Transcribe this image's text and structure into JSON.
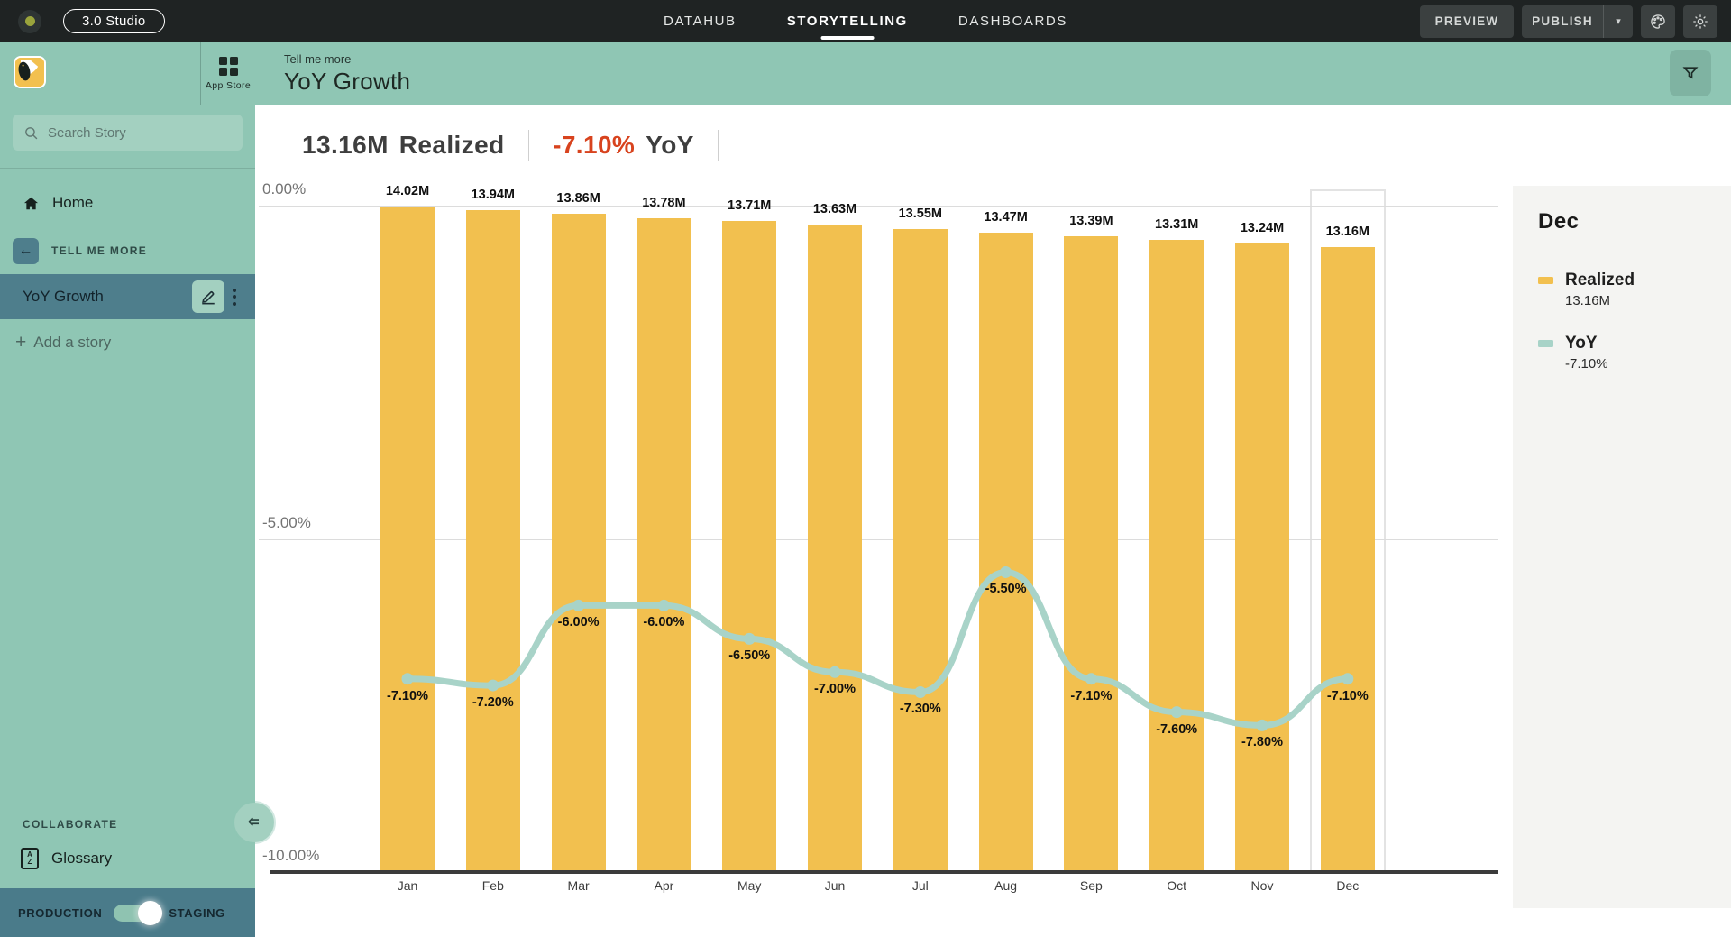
{
  "topbar": {
    "app_pill": "3.0 Studio",
    "nav": [
      {
        "label": "DATAHUB",
        "active": false
      },
      {
        "label": "STORYTELLING",
        "active": true
      },
      {
        "label": "DASHBOARDS",
        "active": false
      }
    ],
    "preview_label": "PREVIEW",
    "publish_label": "PUBLISH"
  },
  "header": {
    "eyebrow": "Tell me more",
    "title": "YoY Growth",
    "app_store_label": "App Store"
  },
  "sidebar": {
    "search_placeholder": "Search Story",
    "home_label": "Home",
    "section_label": "TELL ME MORE",
    "story_label": "YoY Growth",
    "add_story_label": "Add a story",
    "collaborate_label": "COLLABORATE",
    "glossary_label": "Glossary",
    "production_label": "PRODUCTION",
    "staging_label": "STAGING"
  },
  "headline": {
    "realized_value": "13.16M",
    "realized_label": "Realized",
    "yoy_value": "-7.10%",
    "yoy_label": "YoY"
  },
  "chart_data": {
    "type": "bar",
    "categories": [
      "Jan",
      "Feb",
      "Mar",
      "Apr",
      "May",
      "Jun",
      "Jul",
      "Aug",
      "Sep",
      "Oct",
      "Nov",
      "Dec"
    ],
    "series": [
      {
        "name": "Realized",
        "type": "bar",
        "unit": "M",
        "color": "#F2C04F",
        "values": [
          14.02,
          13.94,
          13.86,
          13.78,
          13.71,
          13.63,
          13.55,
          13.47,
          13.39,
          13.31,
          13.24,
          13.16
        ],
        "labels": [
          "14.02M",
          "13.94M",
          "13.86M",
          "13.78M",
          "13.71M",
          "13.63M",
          "13.55M",
          "13.47M",
          "13.39M",
          "13.31M",
          "13.24M",
          "13.16M"
        ]
      },
      {
        "name": "YoY",
        "type": "line",
        "unit": "%",
        "color": "#A8D3C8",
        "values": [
          -7.1,
          -7.2,
          -6.0,
          -6.0,
          -6.5,
          -7.0,
          -7.3,
          -5.5,
          -7.1,
          -7.6,
          -7.8,
          -7.1
        ],
        "labels": [
          "-7.10%",
          "-7.20%",
          "-6.00%",
          "-6.00%",
          "-6.50%",
          "-7.00%",
          "-7.30%",
          "-5.50%",
          "-7.10%",
          "-7.60%",
          "-7.80%",
          "-7.10%"
        ]
      }
    ],
    "y_axis": {
      "ticks": [
        {
          "label": "0.00%",
          "value": 0
        },
        {
          "label": "-5.00%",
          "value": -5
        },
        {
          "label": "-10.00%",
          "value": -10
        }
      ],
      "range": [
        -10,
        0
      ]
    },
    "grid": true,
    "highlighted_category": "Dec",
    "legend_position": "right"
  },
  "panel": {
    "title": "Dec",
    "legend": [
      {
        "name": "Realized",
        "value": "13.16M",
        "color": "#F2C04F"
      },
      {
        "name": "YoY",
        "value": "-7.10%",
        "color": "#A8D3C8"
      }
    ]
  },
  "colors": {
    "accent_teal": "#8FC6B4",
    "dark_teal": "#4E7E8C",
    "bar_yellow": "#F2C04F",
    "line_teal": "#A8D3C8",
    "negative_red": "#D8431E",
    "topbar_black": "#1F2323"
  }
}
